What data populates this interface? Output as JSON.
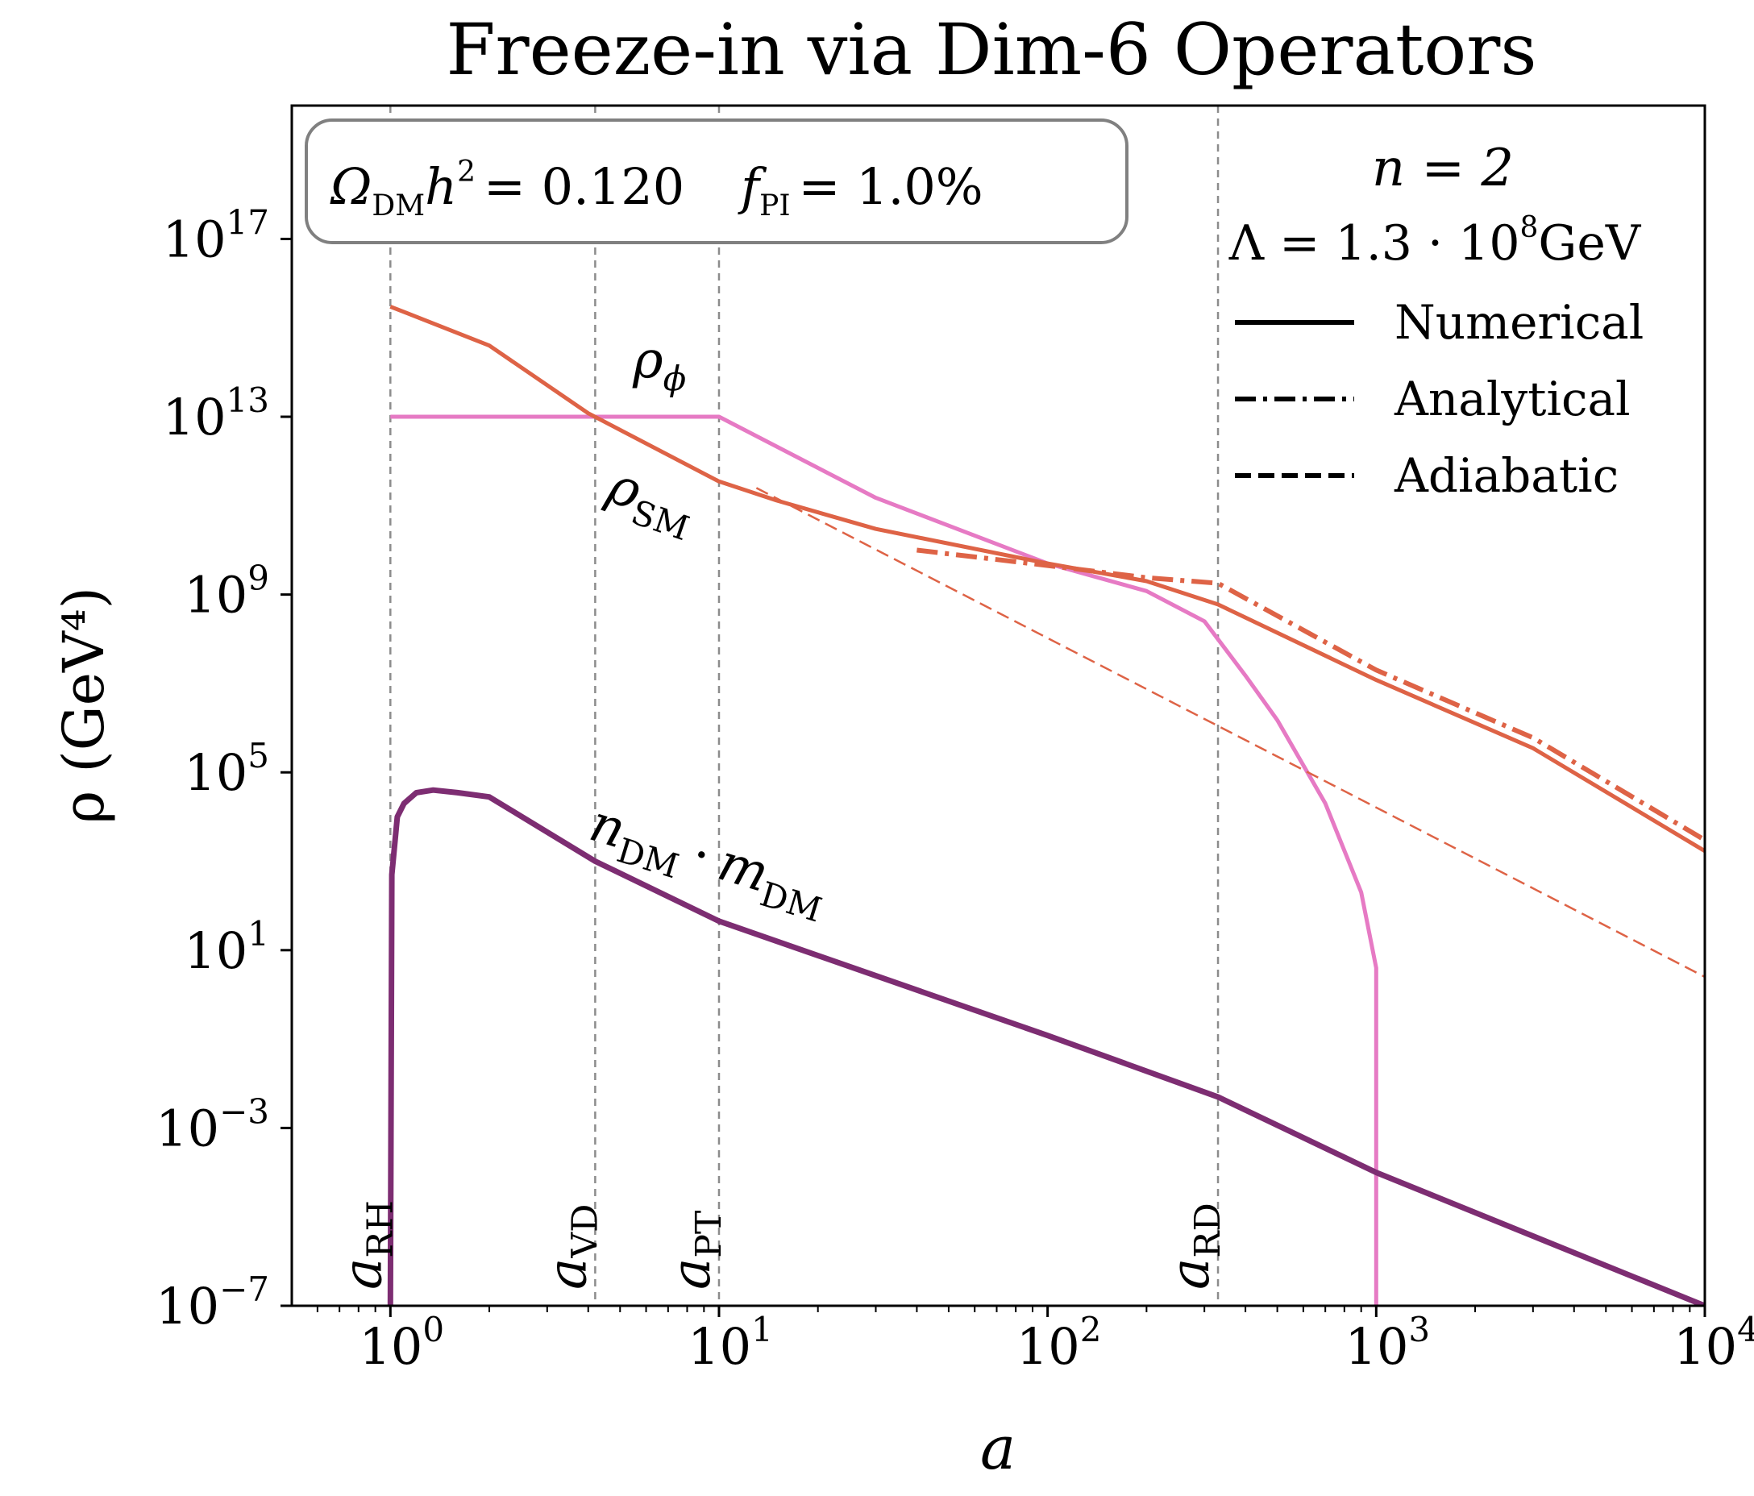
{
  "colors": {
    "sm": "#de6346",
    "phi": "#e67ac4",
    "dm": "#7d2d72",
    "phi_label": "#e055b5",
    "sm_label": "#d9573a",
    "dm_label": "#7d2d72",
    "vline": "#8c8c8c",
    "box_edge": "#808080"
  },
  "chart_data": {
    "type": "line",
    "title": "Freeze-in via Dim-6 Operators",
    "xlabel": "a",
    "ylabel": "ρ (GeV⁴)",
    "xscale": "log",
    "yscale": "log",
    "xlim_log10": [
      -0.3,
      4
    ],
    "ylim_log10": [
      -7,
      20
    ],
    "xticks": [
      {
        "exp": 0,
        "base": "10",
        "sup": "0"
      },
      {
        "exp": 1,
        "base": "10",
        "sup": "1"
      },
      {
        "exp": 2,
        "base": "10",
        "sup": "2"
      },
      {
        "exp": 3,
        "base": "10",
        "sup": "3"
      },
      {
        "exp": 4,
        "base": "10",
        "sup": "4"
      }
    ],
    "yticks": [
      {
        "exp": -7,
        "base": "10",
        "sup": "−7"
      },
      {
        "exp": -3,
        "base": "10",
        "sup": "−3"
      },
      {
        "exp": 1,
        "base": "10",
        "sup": "1"
      },
      {
        "exp": 5,
        "base": "10",
        "sup": "5"
      },
      {
        "exp": 9,
        "base": "10",
        "sup": "9"
      },
      {
        "exp": 13,
        "base": "10",
        "sup": "13"
      },
      {
        "exp": 17,
        "base": "10",
        "sup": "17"
      }
    ],
    "vlines": [
      {
        "name": "a_RH",
        "a": 1.0,
        "main": "a",
        "sub": "RH"
      },
      {
        "name": "a_VD",
        "a": 4.2,
        "main": "a",
        "sub": "VD"
      },
      {
        "name": "a_PT",
        "a": 10.0,
        "main": "a",
        "sub": "PT"
      },
      {
        "name": "a_RD",
        "a": 330,
        "main": "a",
        "sub": "RD"
      }
    ],
    "series": [
      {
        "name": "rho_phi",
        "label": "ρφ",
        "style": "solid",
        "points": [
          [
            1,
            10000000000000.0
          ],
          [
            10,
            10000000000000.0
          ],
          [
            30,
            150000000000.0
          ],
          [
            100,
            5000000000.0
          ],
          [
            200,
            1200000000.0
          ],
          [
            300,
            250000000.0
          ],
          [
            400,
            15000000.0
          ],
          [
            500,
            1500000.0
          ],
          [
            700,
            20000.0
          ],
          [
            900,
            200.0
          ],
          [
            1000,
            4
          ],
          [
            1000,
            1e-07
          ]
        ]
      },
      {
        "name": "rho_SM_numerical",
        "label": "ρSM",
        "style": "solid",
        "points": [
          [
            1,
            3000000000000000.0
          ],
          [
            2,
            400000000000000.0
          ],
          [
            4,
            12000000000000.0
          ],
          [
            10,
            350000000000.0
          ],
          [
            15,
            130000000000.0
          ],
          [
            30,
            30000000000.0
          ],
          [
            100,
            5000000000.0
          ],
          [
            200,
            2000000000.0
          ],
          [
            330,
            600000000.0
          ],
          [
            1000,
            12000000.0
          ],
          [
            3000,
            350000.0
          ],
          [
            10000,
            1700.0
          ]
        ]
      },
      {
        "name": "rho_SM_analytical",
        "label": "",
        "style": "dashdot",
        "points": [
          [
            40,
            10000000000.0
          ],
          [
            100,
            4500000000.0
          ],
          [
            200,
            2400000000.0
          ],
          [
            330,
            1800000000.0
          ],
          [
            1000,
            20000000.0
          ],
          [
            3000,
            600000.0
          ],
          [
            10000,
            3000.0
          ]
        ]
      },
      {
        "name": "rho_SM_adiabatic",
        "label": "",
        "style": "dashed",
        "points": [
          [
            13,
            250000000000.0
          ],
          [
            10000,
            2.5
          ]
        ]
      },
      {
        "name": "n_DM_m_DM",
        "label": "n_DM · m_DM",
        "style": "solid",
        "points": [
          [
            1.0,
            1e-07
          ],
          [
            1.01,
            500.0
          ],
          [
            1.05,
            10000.0
          ],
          [
            1.1,
            20000.0
          ],
          [
            1.2,
            35000.0
          ],
          [
            1.35,
            40000.0
          ],
          [
            1.6,
            35000.0
          ],
          [
            2,
            28000.0
          ],
          [
            4.2,
            1000.0
          ],
          [
            10,
            45.0
          ],
          [
            100,
            0.12
          ],
          [
            330,
            0.005
          ],
          [
            1000,
            0.0001
          ],
          [
            10000,
            1e-07
          ]
        ]
      }
    ],
    "legend": {
      "placement": "top-right",
      "header_n": "n = 2",
      "header_lambda": "Λ = 1.3 · 10",
      "header_lambda_exp": "8",
      "header_lambda_unit": "GeV",
      "entries": [
        {
          "label": "Numerical",
          "style": "solid"
        },
        {
          "label": "Analytical",
          "style": "dashdot"
        },
        {
          "label": "Adiabatic",
          "style": "dashed"
        }
      ]
    },
    "info_box": {
      "placement": "top-left",
      "omega_sym": "Ω",
      "omega_sub": "DM",
      "h_sym": "h",
      "h_sup": "2",
      "omega_value": "= 0.120",
      "f_sym": "f",
      "f_sub": "PI",
      "f_value": "= 1.0%"
    },
    "annotations": {
      "rho_phi_main": "ρ",
      "rho_phi_sub": "ϕ",
      "rho_sm_main": "ρ",
      "rho_sm_sub": "SM",
      "dm_n": "n",
      "dm_n_sub": "DM",
      "dm_dot": "·",
      "dm_m": "m",
      "dm_m_sub": "DM"
    }
  }
}
